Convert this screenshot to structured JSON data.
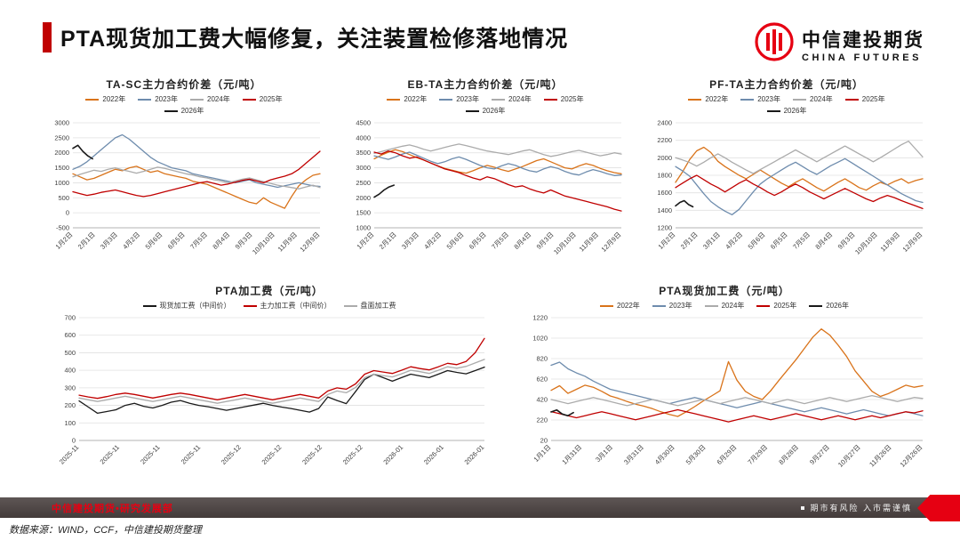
{
  "header": {
    "title": "PTA现货加工费大幅修复，关注装置检修落地情况",
    "logo_cn": "中信建投期货",
    "logo_en": "CHINA FUTURES"
  },
  "footer": {
    "left": "中信建投期货•研究发展部",
    "right": "期市有风险   入市需谨慎",
    "source": "数据来源：WIND，CCF，中信建投期货整理"
  },
  "colors": {
    "accent": "#c00000",
    "logo_red": "#e60012",
    "orange": "#d9731a",
    "blue": "#6e8cad",
    "gray": "#ababab",
    "red": "#c00000",
    "black": "#1a1a1a"
  },
  "chart_data": [
    {
      "type": "line",
      "title": "TA-SC主力合约价差（元/吨）",
      "ylim": [
        -500,
        3000
      ],
      "y_step": 500,
      "grid": true,
      "legend_position": "top",
      "x_labels": [
        "1月2日",
        "2月1日",
        "3月3日",
        "4月2日",
        "5月6日",
        "6月5日",
        "7月5日",
        "8月4日",
        "9月3日",
        "10月10日",
        "11月9日",
        "12月9日"
      ],
      "series": [
        {
          "name": "2022年",
          "color": "#d9731a",
          "values": [
            1300,
            1200,
            1100,
            1150,
            1250,
            1350,
            1450,
            1400,
            1500,
            1550,
            1450,
            1350,
            1400,
            1300,
            1250,
            1200,
            1150,
            1050,
            1000,
            950,
            850,
            750,
            650,
            550,
            450,
            350,
            300,
            500,
            350,
            250,
            150,
            550,
            900,
            1100,
            1250,
            1300
          ]
        },
        {
          "name": "2023年",
          "color": "#6e8cad",
          "values": [
            1450,
            1550,
            1700,
            1900,
            2100,
            2300,
            2500,
            2600,
            2450,
            2250,
            2050,
            1850,
            1700,
            1600,
            1500,
            1450,
            1400,
            1300,
            1250,
            1200,
            1150,
            1100,
            1050,
            1000,
            1050,
            1100,
            1000,
            950,
            900,
            850,
            900,
            950,
            1000,
            950,
            900,
            880
          ]
        },
        {
          "name": "2024年",
          "color": "#ababab",
          "values": [
            1200,
            1280,
            1350,
            1420,
            1380,
            1450,
            1500,
            1430,
            1380,
            1320,
            1380,
            1450,
            1520,
            1480,
            1420,
            1360,
            1300,
            1260,
            1200,
            1160,
            1100,
            1060,
            1000,
            1060,
            1120,
            1160,
            1100,
            1040,
            980,
            920,
            880,
            840,
            800,
            860,
            920,
            840
          ]
        },
        {
          "name": "2025年",
          "color": "#c00000",
          "values": [
            700,
            640,
            580,
            620,
            680,
            720,
            760,
            700,
            640,
            580,
            540,
            580,
            640,
            700,
            760,
            820,
            880,
            940,
            1000,
            1040,
            980,
            920,
            960,
            1020,
            1080,
            1120,
            1060,
            1000,
            1100,
            1160,
            1220,
            1300,
            1450,
            1650,
            1850,
            2050
          ]
        },
        {
          "name": "2026年",
          "color": "#1a1a1a",
          "width": 1.6,
          "span": [
            0,
            0.08
          ],
          "values": [
            2150,
            2250,
            2050,
            1900,
            1800
          ]
        }
      ]
    },
    {
      "type": "line",
      "title": "EB-TA主力合约价差（元/吨）",
      "ylim": [
        1000,
        4500
      ],
      "y_step": 500,
      "grid": true,
      "legend_position": "top",
      "x_labels": [
        "1月2日",
        "2月1日",
        "3月3日",
        "4月2日",
        "5月6日",
        "6月5日",
        "7月5日",
        "8月4日",
        "9月3日",
        "10月10日",
        "11月9日",
        "12月9日"
      ],
      "series": [
        {
          "name": "2022年",
          "color": "#d9731a",
          "values": [
            3300,
            3420,
            3520,
            3600,
            3540,
            3440,
            3340,
            3260,
            3160,
            3060,
            2980,
            2920,
            2860,
            2820,
            2900,
            3000,
            3080,
            3020,
            2940,
            2880,
            2960,
            3040,
            3140,
            3240,
            3300,
            3200,
            3100,
            3000,
            2960,
            3060,
            3140,
            3080,
            2980,
            2900,
            2840,
            2800
          ]
        },
        {
          "name": "2023年",
          "color": "#6e8cad",
          "values": [
            3400,
            3340,
            3280,
            3360,
            3460,
            3520,
            3420,
            3320,
            3220,
            3140,
            3200,
            3300,
            3360,
            3280,
            3180,
            3080,
            3000,
            2960,
            3060,
            3140,
            3080,
            2980,
            2900,
            2860,
            2960,
            3040,
            2980,
            2880,
            2800,
            2760,
            2860,
            2940,
            2880,
            2800,
            2740,
            2760
          ]
        },
        {
          "name": "2024年",
          "color": "#ababab",
          "values": [
            3480,
            3540,
            3600,
            3660,
            3720,
            3760,
            3700,
            3620,
            3560,
            3620,
            3680,
            3740,
            3790,
            3740,
            3680,
            3620,
            3560,
            3520,
            3480,
            3440,
            3500,
            3560,
            3600,
            3520,
            3440,
            3380,
            3420,
            3480,
            3540,
            3580,
            3520,
            3460,
            3400,
            3440,
            3500,
            3460
          ]
        },
        {
          "name": "2025年",
          "color": "#c00000",
          "values": [
            3520,
            3460,
            3560,
            3500,
            3400,
            3320,
            3360,
            3260,
            3160,
            3060,
            2960,
            2900,
            2840,
            2740,
            2660,
            2600,
            2700,
            2640,
            2540,
            2440,
            2360,
            2400,
            2300,
            2220,
            2160,
            2260,
            2160,
            2060,
            2000,
            1940,
            1880,
            1820,
            1760,
            1700,
            1620,
            1560
          ]
        },
        {
          "name": "2026年",
          "color": "#1a1a1a",
          "width": 1.6,
          "span": [
            0,
            0.08
          ],
          "values": [
            2020,
            2120,
            2260,
            2360,
            2420
          ]
        }
      ]
    },
    {
      "type": "line",
      "title": "PF-TA主力合约价差（元/吨）",
      "ylim": [
        1200,
        2400
      ],
      "y_step": 200,
      "grid": true,
      "legend_position": "top",
      "x_labels": [
        "1月2日",
        "2月1日",
        "3月1日",
        "4月2日",
        "5月6日",
        "6月5日",
        "7月5日",
        "8月4日",
        "9月3日",
        "10月10日",
        "11月9日",
        "12月9日"
      ],
      "series": [
        {
          "name": "2022年",
          "color": "#d9731a",
          "values": [
            1720,
            1840,
            1980,
            2080,
            2120,
            2060,
            1960,
            1900,
            1850,
            1800,
            1760,
            1810,
            1860,
            1810,
            1760,
            1710,
            1670,
            1720,
            1760,
            1710,
            1660,
            1620,
            1670,
            1720,
            1760,
            1710,
            1660,
            1630,
            1680,
            1720,
            1690,
            1730,
            1760,
            1710,
            1740,
            1760
          ]
        },
        {
          "name": "2023年",
          "color": "#6e8cad",
          "values": [
            1900,
            1850,
            1790,
            1690,
            1590,
            1500,
            1440,
            1390,
            1350,
            1410,
            1510,
            1610,
            1700,
            1760,
            1810,
            1860,
            1910,
            1950,
            1900,
            1850,
            1810,
            1860,
            1910,
            1950,
            1990,
            1940,
            1890,
            1840,
            1790,
            1740,
            1690,
            1640,
            1590,
            1550,
            1510,
            1490
          ]
        },
        {
          "name": "2024年",
          "color": "#ababab",
          "values": [
            2000,
            1975,
            1945,
            1905,
            1950,
            2000,
            2045,
            2000,
            1950,
            1905,
            1860,
            1820,
            1865,
            1910,
            1955,
            2000,
            2045,
            2090,
            2045,
            2000,
            1955,
            2000,
            2045,
            2090,
            2135,
            2090,
            2045,
            2000,
            1955,
            2000,
            2050,
            2100,
            2150,
            2190,
            2100,
            2010
          ]
        },
        {
          "name": "2025年",
          "color": "#c00000",
          "values": [
            1660,
            1710,
            1760,
            1800,
            1750,
            1700,
            1660,
            1610,
            1660,
            1710,
            1750,
            1700,
            1660,
            1610,
            1570,
            1610,
            1660,
            1700,
            1660,
            1610,
            1570,
            1530,
            1570,
            1610,
            1650,
            1610,
            1570,
            1530,
            1500,
            1540,
            1570,
            1545,
            1510,
            1480,
            1450,
            1420
          ]
        },
        {
          "name": "2026年",
          "color": "#1a1a1a",
          "width": 1.6,
          "span": [
            0,
            0.07
          ],
          "values": [
            1450,
            1490,
            1510,
            1465,
            1440
          ]
        }
      ]
    },
    {
      "type": "line",
      "title": "PTA加工费（元/吨）",
      "ylim": [
        0,
        700
      ],
      "y_step": 100,
      "grid": true,
      "legend_position": "top",
      "x_labels": [
        "2025-11",
        "2025-11",
        "2025-11",
        "2025-11",
        "2025-12",
        "2025-12",
        "2025-12",
        "2025-12",
        "2026-01",
        "2026-01",
        "2026-01"
      ],
      "series": [
        {
          "name": "现货加工费（中间价）",
          "color": "#1a1a1a",
          "values": [
            225,
            190,
            155,
            165,
            175,
            200,
            212,
            195,
            185,
            200,
            218,
            228,
            212,
            200,
            192,
            182,
            172,
            182,
            192,
            202,
            212,
            200,
            190,
            182,
            172,
            162,
            182,
            248,
            228,
            210,
            278,
            348,
            378,
            358,
            338,
            358,
            378,
            368,
            358,
            378,
            398,
            388,
            380,
            398,
            418
          ]
        },
        {
          "name": "主力加工费（中间价）",
          "color": "#c00000",
          "values": [
            258,
            248,
            240,
            250,
            262,
            270,
            262,
            252,
            242,
            252,
            262,
            270,
            262,
            252,
            242,
            232,
            242,
            252,
            262,
            252,
            242,
            232,
            242,
            252,
            262,
            252,
            242,
            282,
            300,
            292,
            322,
            378,
            398,
            390,
            382,
            400,
            420,
            410,
            402,
            420,
            440,
            432,
            450,
            500,
            582
          ]
        },
        {
          "name": "盘面加工费",
          "color": "#ababab",
          "values": [
            242,
            232,
            222,
            232,
            242,
            252,
            242,
            232,
            222,
            232,
            242,
            252,
            242,
            232,
            222,
            212,
            222,
            232,
            242,
            232,
            222,
            212,
            222,
            232,
            242,
            232,
            222,
            262,
            282,
            272,
            302,
            358,
            378,
            370,
            362,
            380,
            400,
            392,
            382,
            400,
            420,
            412,
            422,
            442,
            462
          ]
        }
      ]
    },
    {
      "type": "line",
      "title": "PTA现货加工费（元/吨）",
      "ylim": [
        20,
        1220
      ],
      "y_step": 200,
      "grid": true,
      "legend_position": "top",
      "x_labels": [
        "1月1日",
        "1月31日",
        "3月1日",
        "3月31日",
        "4月30日",
        "5月30日",
        "6月29日",
        "7月29日",
        "8月28日",
        "9月27日",
        "10月27日",
        "11月26日",
        "12月26日"
      ],
      "series": [
        {
          "name": "2022年",
          "color": "#d9731a",
          "values": [
            510,
            555,
            480,
            520,
            560,
            540,
            500,
            455,
            430,
            400,
            375,
            355,
            330,
            300,
            275,
            255,
            300,
            350,
            405,
            455,
            505,
            790,
            610,
            500,
            450,
            420,
            505,
            610,
            710,
            810,
            920,
            1030,
            1110,
            1050,
            950,
            840,
            700,
            600,
            500,
            450,
            480,
            520,
            560,
            540,
            555
          ]
        },
        {
          "name": "2023年",
          "color": "#6e8cad",
          "values": [
            755,
            785,
            720,
            680,
            648,
            600,
            560,
            520,
            500,
            480,
            460,
            440,
            420,
            400,
            380,
            400,
            420,
            440,
            420,
            400,
            380,
            360,
            340,
            360,
            380,
            400,
            380,
            360,
            340,
            320,
            300,
            320,
            340,
            320,
            300,
            280,
            300,
            320,
            300,
            280,
            262,
            280,
            300,
            282,
            262
          ]
        },
        {
          "name": "2024年",
          "color": "#ababab",
          "values": [
            420,
            400,
            380,
            400,
            420,
            440,
            420,
            400,
            380,
            360,
            380,
            400,
            420,
            400,
            380,
            360,
            380,
            400,
            420,
            400,
            380,
            400,
            420,
            440,
            420,
            400,
            380,
            400,
            420,
            400,
            380,
            400,
            420,
            440,
            420,
            400,
            420,
            440,
            458,
            440,
            420,
            400,
            420,
            440,
            430
          ]
        },
        {
          "name": "2025年",
          "color": "#c00000",
          "values": [
            302,
            282,
            262,
            242,
            262,
            282,
            300,
            282,
            262,
            242,
            222,
            242,
            262,
            282,
            300,
            320,
            300,
            282,
            262,
            242,
            222,
            202,
            222,
            242,
            262,
            242,
            222,
            242,
            262,
            282,
            262,
            242,
            222,
            242,
            262,
            242,
            222,
            242,
            262,
            242,
            262,
            282,
            300,
            290,
            310
          ]
        },
        {
          "name": "2026年",
          "color": "#1a1a1a",
          "width": 1.6,
          "span": [
            0,
            0.06
          ],
          "values": [
            298,
            318,
            278,
            262,
            292
          ]
        }
      ]
    }
  ]
}
